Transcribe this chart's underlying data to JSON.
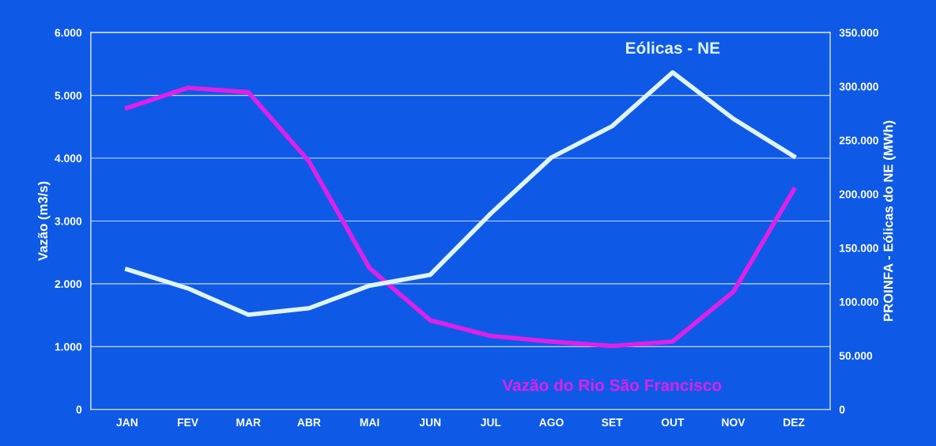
{
  "chart_data": {
    "type": "line",
    "ylabel": "Vazão (m3/s)",
    "y2label": "PROINFA - Eólicas do NE (MWh)",
    "categories": [
      "JAN",
      "FEV",
      "MAR",
      "ABR",
      "MAI",
      "JUN",
      "JUL",
      "AGO",
      "SET",
      "OUT",
      "NOV",
      "DEZ"
    ],
    "series": [
      {
        "name": "Vazão do Rio São Francisco",
        "color": "#e020e8",
        "values": [
          4800,
          5120,
          5050,
          3950,
          2250,
          1420,
          1170,
          1080,
          1010,
          1080,
          1870,
          3500
        ]
      },
      {
        "name": "Eólicas - NE",
        "color": "#e0f4ff",
        "axis": "y2",
        "values": [
          130000,
          112500,
          88000,
          94000,
          115000,
          125000,
          182000,
          234000,
          263000,
          313000,
          270000,
          235000
        ]
      }
    ],
    "ylim": [
      0,
      6000
    ],
    "yticks": [
      0,
      {
        "value": 1000,
        "label": "1.000"
      },
      {
        "value": 2000,
        "label": "2.000"
      },
      {
        "value": 3000,
        "label": "3.000"
      },
      {
        "value": 4000,
        "label": "4.000"
      },
      {
        "value": 5000,
        "label": "5.000"
      },
      {
        "value": 6000,
        "label": "6.000"
      }
    ],
    "y2lim": [
      0,
      350000
    ],
    "y2ticks": [
      0,
      {
        "value": 50000,
        "label": "50.000"
      },
      {
        "value": 100000,
        "label": "100.000"
      },
      {
        "value": 150000,
        "label": "150.000"
      },
      {
        "value": 200000,
        "label": "200.000"
      },
      {
        "value": 250000,
        "label": "250.000"
      },
      {
        "value": 300000,
        "label": "300.000"
      },
      {
        "value": 350000,
        "label": "350.000"
      }
    ],
    "grid": "y",
    "legend": false,
    "marker": "none",
    "line_style": "solid"
  }
}
